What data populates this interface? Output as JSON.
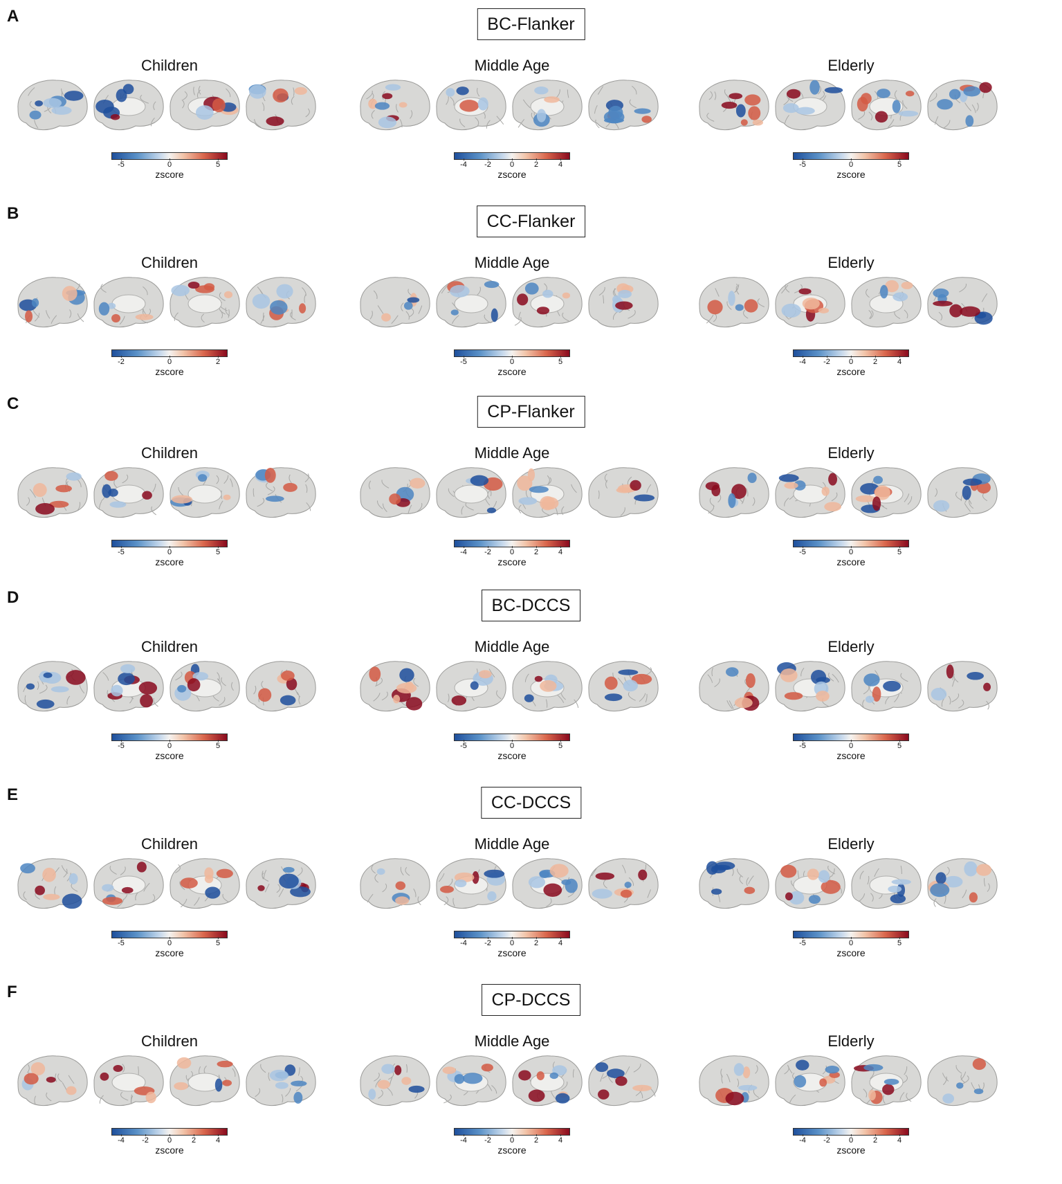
{
  "groups": [
    "Children",
    "Middle Age",
    "Elderly"
  ],
  "colorbar_label": "zscore",
  "colormap": [
    "#1e4f9c",
    "#f5f2ef",
    "#8a0a1e"
  ],
  "rows": [
    {
      "letter": "A",
      "condition": "BC-Flanker",
      "ticks": [
        [
          "-5",
          "0",
          "5"
        ],
        [
          "-4",
          "-2",
          "0",
          "2",
          "4"
        ],
        [
          "-5",
          "0",
          "5"
        ]
      ]
    },
    {
      "letter": "B",
      "condition": "CC-Flanker",
      "ticks": [
        [
          "-2",
          "0",
          "2"
        ],
        [
          "-5",
          "0",
          "5"
        ],
        [
          "-4",
          "-2",
          "0",
          "2",
          "4"
        ]
      ]
    },
    {
      "letter": "C",
      "condition": "CP-Flanker",
      "ticks": [
        [
          "-5",
          "0",
          "5"
        ],
        [
          "-4",
          "-2",
          "0",
          "2",
          "4"
        ],
        [
          "-5",
          "0",
          "5"
        ]
      ]
    },
    {
      "letter": "D",
      "condition": "BC-DCCS",
      "ticks": [
        [
          "-5",
          "0",
          "5"
        ],
        [
          "-5",
          "0",
          "5"
        ],
        [
          "-5",
          "0",
          "5"
        ]
      ]
    },
    {
      "letter": "E",
      "condition": "CC-DCCS",
      "ticks": [
        [
          "-5",
          "0",
          "5"
        ],
        [
          "-4",
          "-2",
          "0",
          "2",
          "4"
        ],
        [
          "-5",
          "0",
          "5"
        ]
      ]
    },
    {
      "letter": "F",
      "condition": "CP-DCCS",
      "ticks": [
        [
          "-4",
          "-2",
          "0",
          "2",
          "4"
        ],
        [
          "-4",
          "-2",
          "0",
          "2",
          "4"
        ],
        [
          "-4",
          "-2",
          "0",
          "2",
          "4"
        ]
      ]
    }
  ]
}
